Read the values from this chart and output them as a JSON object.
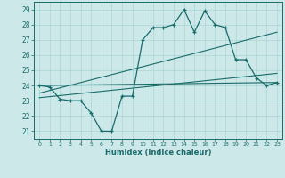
{
  "xlabel": "Humidex (Indice chaleur)",
  "bg_color": "#cce8e8",
  "line_color": "#1a6b6b",
  "grid_color": "#aad4d4",
  "xlim": [
    -0.5,
    23.5
  ],
  "ylim": [
    20.5,
    29.5
  ],
  "yticks": [
    21,
    22,
    23,
    24,
    25,
    26,
    27,
    28,
    29
  ],
  "xticks": [
    0,
    1,
    2,
    3,
    4,
    5,
    6,
    7,
    8,
    9,
    10,
    11,
    12,
    13,
    14,
    15,
    16,
    17,
    18,
    19,
    20,
    21,
    22,
    23
  ],
  "main_x": [
    0,
    1,
    2,
    3,
    4,
    5,
    6,
    7,
    8,
    9,
    10,
    11,
    12,
    13,
    14,
    15,
    16,
    17,
    18,
    19,
    20,
    21,
    22,
    23
  ],
  "main_y": [
    24.0,
    23.9,
    23.1,
    23.0,
    23.0,
    22.2,
    21.0,
    21.0,
    23.3,
    23.3,
    27.0,
    27.8,
    27.8,
    28.0,
    29.0,
    27.5,
    28.9,
    28.0,
    27.8,
    25.7,
    25.7,
    24.5,
    24.0,
    24.2
  ],
  "trend1_x": [
    0,
    23
  ],
  "trend1_y": [
    24.0,
    24.2
  ],
  "trend2_x": [
    0,
    23
  ],
  "trend2_y": [
    23.5,
    27.5
  ],
  "trend3_x": [
    0,
    23
  ],
  "trend3_y": [
    23.2,
    24.8
  ]
}
